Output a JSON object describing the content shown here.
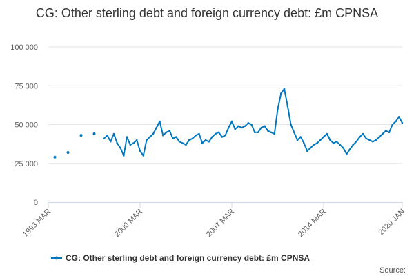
{
  "chart_data": {
    "type": "line",
    "title": "CG: Other sterling debt and foreign currency debt: £m CPNSA",
    "xlabel": "",
    "ylabel": "",
    "ylim": [
      0,
      100000
    ],
    "yticks": [
      0,
      25000,
      50000,
      75000,
      100000
    ],
    "ytick_labels": [
      "0",
      "25 000",
      "50 000",
      "75 000",
      "100 000"
    ],
    "xlim": [
      1993.0,
      2020.0
    ],
    "xticks": [
      1993.0,
      2000.0,
      2007.0,
      2014.0,
      2020.0
    ],
    "xtick_labels": [
      "1993 MAR",
      "2000 MAR",
      "2007 MAR",
      "2014 MAR",
      "2020 JAN"
    ],
    "grid": "horizontal",
    "legend": "bottom-center",
    "color": "#0077be",
    "annual_points": [
      {
        "x": 1993.5,
        "y": 29000
      },
      {
        "x": 1994.5,
        "y": 32000
      },
      {
        "x": 1995.5,
        "y": 43000
      },
      {
        "x": 1996.5,
        "y": 44000
      }
    ],
    "series": [
      {
        "name": "CG: Other sterling debt and foreign currency debt: £m CPNSA",
        "x": [
          1997.25,
          1997.5,
          1997.75,
          1998.0,
          1998.25,
          1998.5,
          1998.75,
          1999.0,
          1999.25,
          1999.5,
          1999.75,
          2000.0,
          2000.25,
          2000.5,
          2000.75,
          2001.0,
          2001.25,
          2001.5,
          2001.75,
          2002.0,
          2002.25,
          2002.5,
          2002.75,
          2003.0,
          2003.25,
          2003.5,
          2003.75,
          2004.0,
          2004.25,
          2004.5,
          2004.75,
          2005.0,
          2005.25,
          2005.5,
          2005.75,
          2006.0,
          2006.25,
          2006.5,
          2006.75,
          2007.0,
          2007.25,
          2007.5,
          2007.75,
          2008.0,
          2008.25,
          2008.5,
          2008.75,
          2009.0,
          2009.25,
          2009.5,
          2009.75,
          2010.0,
          2010.25,
          2010.5,
          2010.75,
          2011.0,
          2011.25,
          2011.5,
          2011.75,
          2012.0,
          2012.25,
          2012.5,
          2012.75,
          2013.0,
          2013.25,
          2013.5,
          2013.75,
          2014.0,
          2014.25,
          2014.5,
          2014.75,
          2015.0,
          2015.25,
          2015.5,
          2015.75,
          2016.0,
          2016.25,
          2016.5,
          2016.75,
          2017.0,
          2017.25,
          2017.5,
          2017.75,
          2018.0,
          2018.25,
          2018.5,
          2018.75,
          2019.0,
          2019.25,
          2019.5,
          2019.75,
          2020.0
        ],
        "values": [
          41000,
          43000,
          39000,
          44000,
          38000,
          35000,
          30000,
          42000,
          37000,
          38000,
          40000,
          33000,
          30000,
          40000,
          42000,
          44000,
          48000,
          52000,
          43000,
          45000,
          46000,
          41000,
          42000,
          39000,
          38000,
          37000,
          40000,
          41000,
          43000,
          44000,
          38000,
          40000,
          39000,
          42000,
          44000,
          45000,
          42000,
          43000,
          48000,
          52000,
          47000,
          49000,
          48000,
          49000,
          51000,
          50000,
          45000,
          45000,
          48000,
          49000,
          46000,
          45000,
          44000,
          60000,
          70000,
          73000,
          62000,
          50000,
          45000,
          40000,
          42000,
          38000,
          33000,
          35000,
          37000,
          38000,
          40000,
          42000,
          44000,
          40000,
          38000,
          39000,
          37000,
          35000,
          31000,
          34000,
          37000,
          39000,
          42000,
          44000,
          41000,
          40000,
          39000,
          40000,
          42000,
          44000,
          46000,
          45000,
          50000,
          52000,
          55000,
          51000
        ]
      }
    ],
    "legend_label": "CG: Other sterling debt and foreign currency debt: £m CPNSA",
    "source_label": "Source:"
  }
}
